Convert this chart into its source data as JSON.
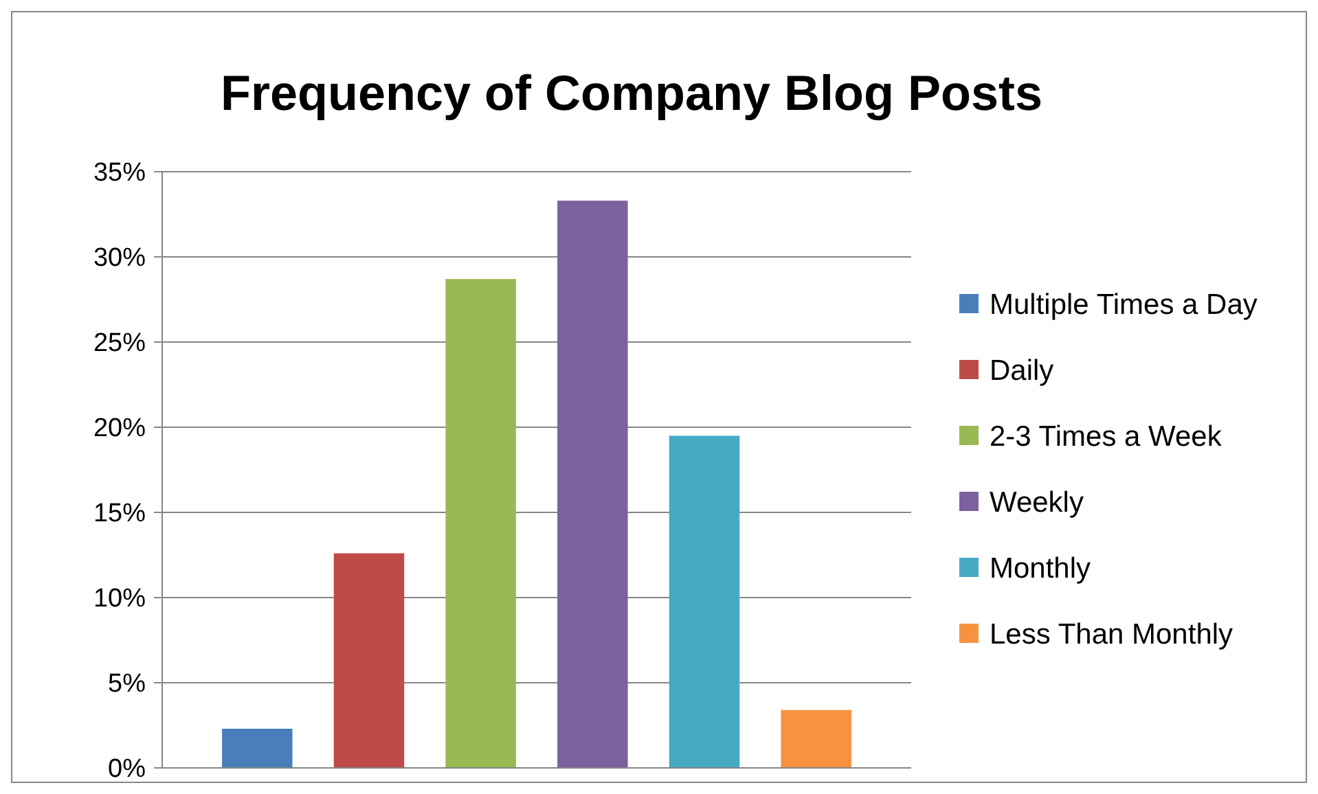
{
  "chart_data": {
    "type": "bar",
    "title": "Frequency of Company Blog Posts",
    "categories": [
      null
    ],
    "series": [
      {
        "name": "Multiple Times a Day",
        "color": "#4a7ebb",
        "values": [
          2.3
        ]
      },
      {
        "name": "Daily",
        "color": "#be4b48",
        "values": [
          12.6
        ]
      },
      {
        "name": "2-3 Times a Week",
        "color": "#98b954",
        "values": [
          28.7
        ]
      },
      {
        "name": "Weekly",
        "color": "#7d60a0",
        "values": [
          33.3
        ]
      },
      {
        "name": "Monthly",
        "color": "#46aac5",
        "values": [
          19.5
        ]
      },
      {
        "name": "Less Than Monthly",
        "color": "#f69240",
        "values": [
          3.4
        ]
      }
    ],
    "ylim": [
      0,
      35
    ],
    "yticks": [
      {
        "value": 0,
        "label": "0%"
      },
      {
        "value": 5,
        "label": "5%"
      },
      {
        "value": 10,
        "label": "10%"
      },
      {
        "value": 15,
        "label": "15%"
      },
      {
        "value": 20,
        "label": "20%"
      },
      {
        "value": 25,
        "label": "25%"
      },
      {
        "value": 30,
        "label": "30%"
      },
      {
        "value": 35,
        "label": "35%"
      }
    ],
    "grid": "y",
    "legend": "right"
  }
}
